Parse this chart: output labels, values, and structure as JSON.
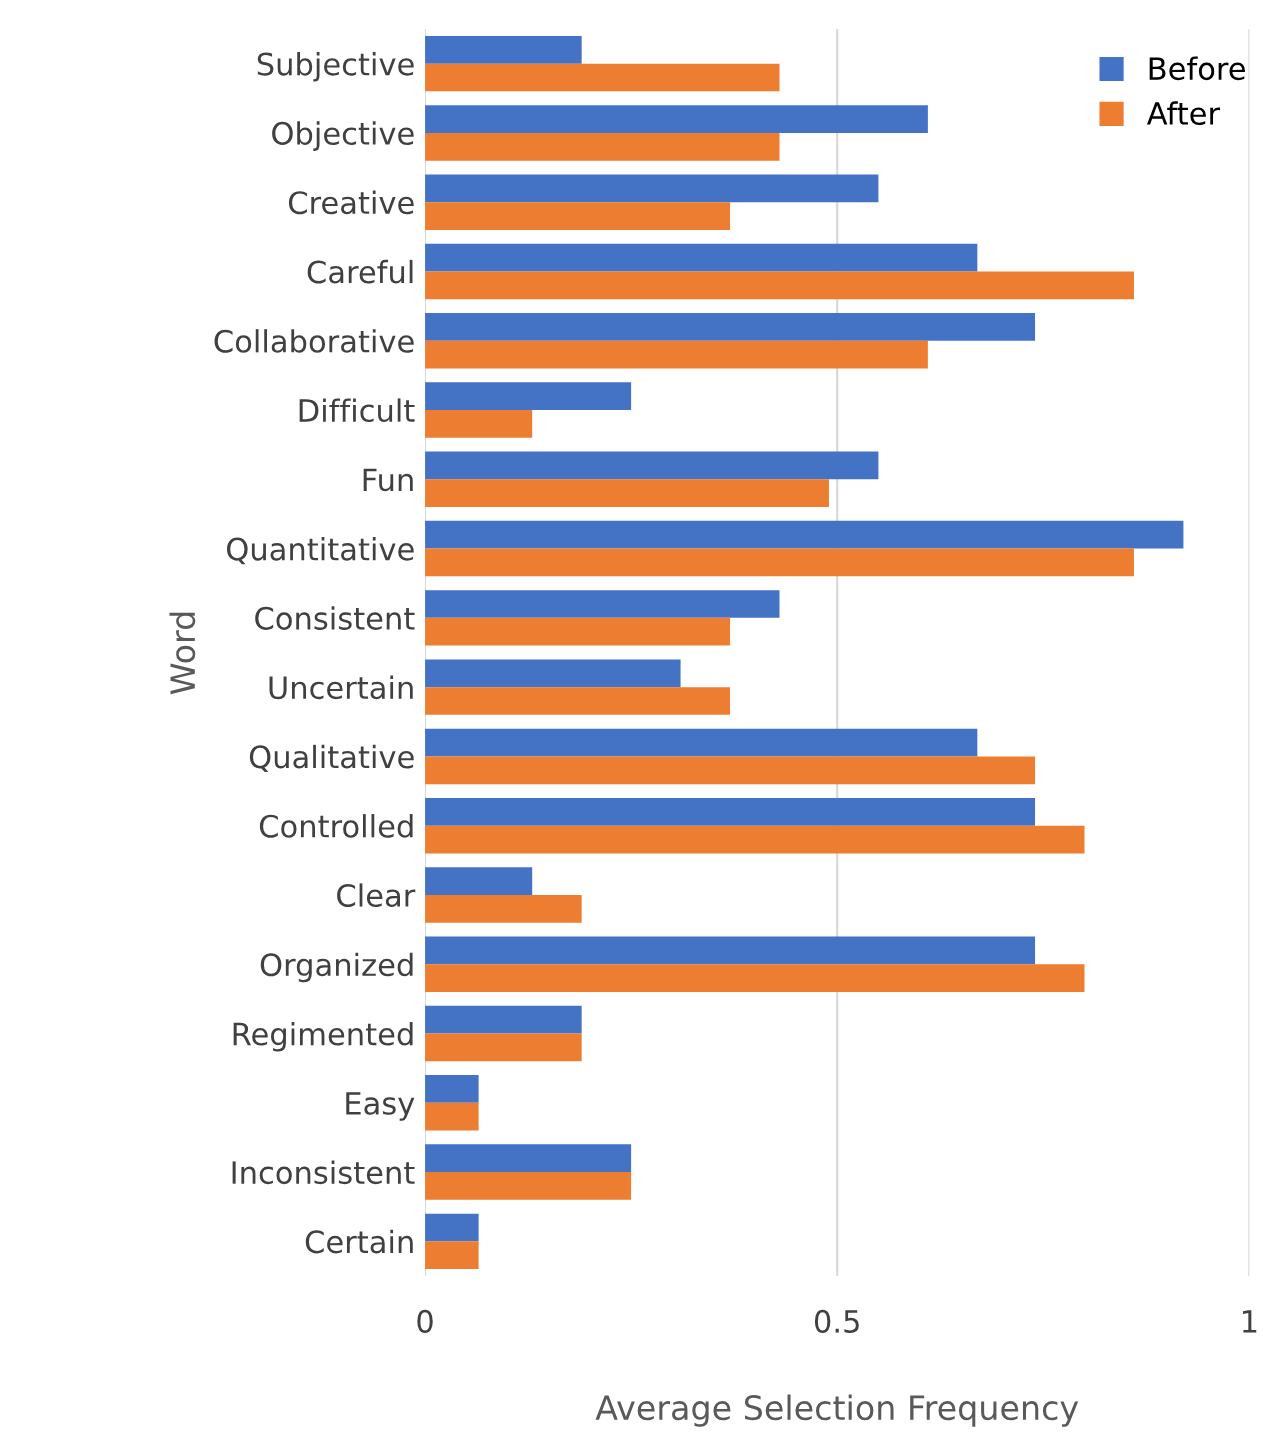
{
  "chart_data": {
    "type": "bar",
    "orientation": "horizontal",
    "xlabel": "Average Selection Frequency",
    "ylabel": "Word",
    "categories": [
      "Subjective",
      "Objective",
      "Creative",
      "Careful",
      "Collaborative",
      "Difficult",
      "Fun",
      "Quantitative",
      "Consistent",
      "Uncertain",
      "Qualitative",
      "Controlled",
      "Clear",
      "Organized",
      "Regimented",
      "Easy",
      "Inconsistent",
      "Certain"
    ],
    "series": [
      {
        "name": "Before",
        "color": "#4472c4",
        "values": [
          0.19,
          0.61,
          0.55,
          0.67,
          0.74,
          0.25,
          0.55,
          0.92,
          0.43,
          0.31,
          0.67,
          0.74,
          0.13,
          0.74,
          0.19,
          0.065,
          0.25,
          0.065
        ]
      },
      {
        "name": "After",
        "color": "#ed7d31",
        "values": [
          0.43,
          0.43,
          0.37,
          0.86,
          0.61,
          0.13,
          0.49,
          0.86,
          0.37,
          0.37,
          0.74,
          0.8,
          0.19,
          0.8,
          0.19,
          0.065,
          0.25,
          0.065
        ]
      }
    ],
    "xlim": [
      0,
      1
    ],
    "xticks": [
      0,
      0.5,
      1
    ],
    "grid": "x",
    "legend": "top right"
  }
}
